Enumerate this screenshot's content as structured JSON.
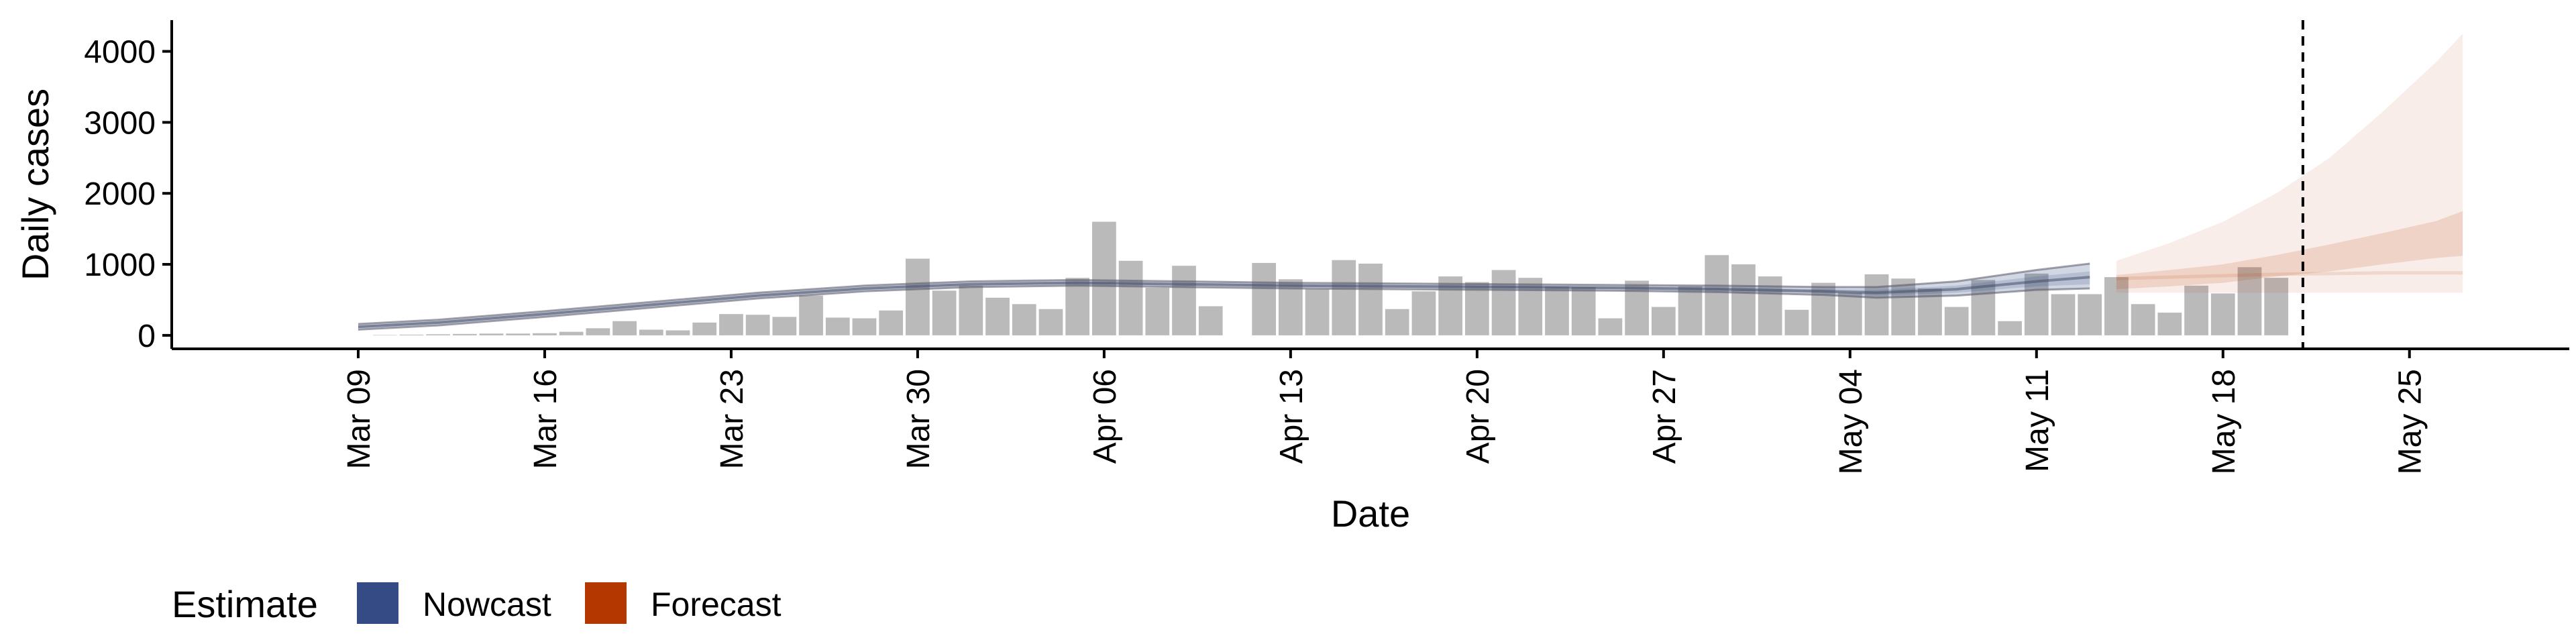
{
  "chart_data": {
    "type": "bar",
    "xlabel": "Date",
    "ylabel": "Daily cases",
    "x_range": [
      "2020-03-02",
      "2020-05-31"
    ],
    "ylim": [
      -190,
      4440
    ],
    "grid": false,
    "y_ticks": [
      0,
      1000,
      2000,
      3000,
      4000
    ],
    "x_ticks": [
      {
        "date": "2020-03-09",
        "label": "Mar 09"
      },
      {
        "date": "2020-03-16",
        "label": "Mar 16"
      },
      {
        "date": "2020-03-23",
        "label": "Mar 23"
      },
      {
        "date": "2020-03-30",
        "label": "Mar 30"
      },
      {
        "date": "2020-04-06",
        "label": "Apr 06"
      },
      {
        "date": "2020-04-13",
        "label": "Apr 13"
      },
      {
        "date": "2020-04-20",
        "label": "Apr 20"
      },
      {
        "date": "2020-04-27",
        "label": "Apr 27"
      },
      {
        "date": "2020-05-04",
        "label": "May 04"
      },
      {
        "date": "2020-05-11",
        "label": "May 11"
      },
      {
        "date": "2020-05-18",
        "label": "May 18"
      },
      {
        "date": "2020-05-25",
        "label": "May 25"
      }
    ],
    "reported_cases": {
      "start_date": "2020-03-09",
      "values": [
        0,
        5,
        10,
        15,
        20,
        25,
        25,
        30,
        50,
        100,
        200,
        80,
        70,
        180,
        300,
        290,
        260,
        560,
        250,
        240,
        350,
        1080,
        630,
        700,
        530,
        440,
        370,
        810,
        1600,
        1050,
        670,
        980,
        410,
        0,
        1020,
        790,
        650,
        1060,
        1010,
        370,
        620,
        830,
        750,
        920,
        810,
        690,
        680,
        240,
        770,
        400,
        690,
        1130,
        1000,
        830,
        360,
        740,
        600,
        860,
        800,
        660,
        400,
        780,
        200,
        870,
        580,
        580,
        820,
        440,
        320,
        700,
        590,
        960,
        810
      ],
      "color": "#bababa"
    },
    "nowcast": {
      "dates": [
        "2020-03-09",
        "2020-03-12",
        "2020-03-16",
        "2020-03-20",
        "2020-03-24",
        "2020-03-28",
        "2020-04-01",
        "2020-04-05",
        "2020-04-09",
        "2020-04-13",
        "2020-04-17",
        "2020-04-21",
        "2020-04-25",
        "2020-04-29",
        "2020-05-03",
        "2020-05-05",
        "2020-05-08",
        "2020-05-11",
        "2020-05-13"
      ],
      "median": [
        120,
        180,
        300,
        430,
        560,
        660,
        720,
        740,
        720,
        700,
        690,
        680,
        670,
        650,
        620,
        600,
        650,
        760,
        820
      ],
      "lower_50": [
        100,
        160,
        280,
        410,
        540,
        640,
        700,
        720,
        700,
        680,
        670,
        660,
        650,
        630,
        590,
        560,
        600,
        690,
        720
      ],
      "upper_50": [
        140,
        200,
        320,
        450,
        580,
        680,
        740,
        760,
        740,
        720,
        710,
        700,
        690,
        680,
        650,
        640,
        700,
        830,
        900
      ],
      "lower_90": [
        80,
        140,
        260,
        390,
        520,
        620,
        680,
        700,
        680,
        660,
        650,
        640,
        630,
        610,
        570,
        530,
        560,
        640,
        660
      ],
      "upper_90": [
        160,
        220,
        340,
        470,
        600,
        700,
        760,
        780,
        760,
        740,
        730,
        720,
        710,
        700,
        680,
        680,
        760,
        920,
        1010
      ],
      "color": "#344b86"
    },
    "forecast": {
      "dates": [
        "2020-05-14",
        "2020-05-16",
        "2020-05-18",
        "2020-05-20",
        "2020-05-22",
        "2020-05-24",
        "2020-05-26",
        "2020-05-27"
      ],
      "median": [
        800,
        820,
        840,
        860,
        870,
        880,
        880,
        880
      ],
      "lower_50": [
        650,
        690,
        740,
        830,
        900,
        1000,
        1090,
        1120
      ],
      "upper_50": [
        850,
        920,
        1000,
        1130,
        1280,
        1440,
        1610,
        1750
      ],
      "lower_90": [
        600,
        600,
        600,
        600,
        600,
        600,
        600,
        600
      ],
      "upper_90": [
        1050,
        1300,
        1600,
        2000,
        2500,
        3150,
        3850,
        4250
      ],
      "color": "#b53700"
    },
    "vline_date": "2020-05-21",
    "legend": {
      "placement": "bottom",
      "title": "Estimate",
      "items": [
        {
          "label": "Nowcast",
          "color": "#344b86"
        },
        {
          "label": "Forecast",
          "color": "#b53700"
        }
      ]
    }
  }
}
